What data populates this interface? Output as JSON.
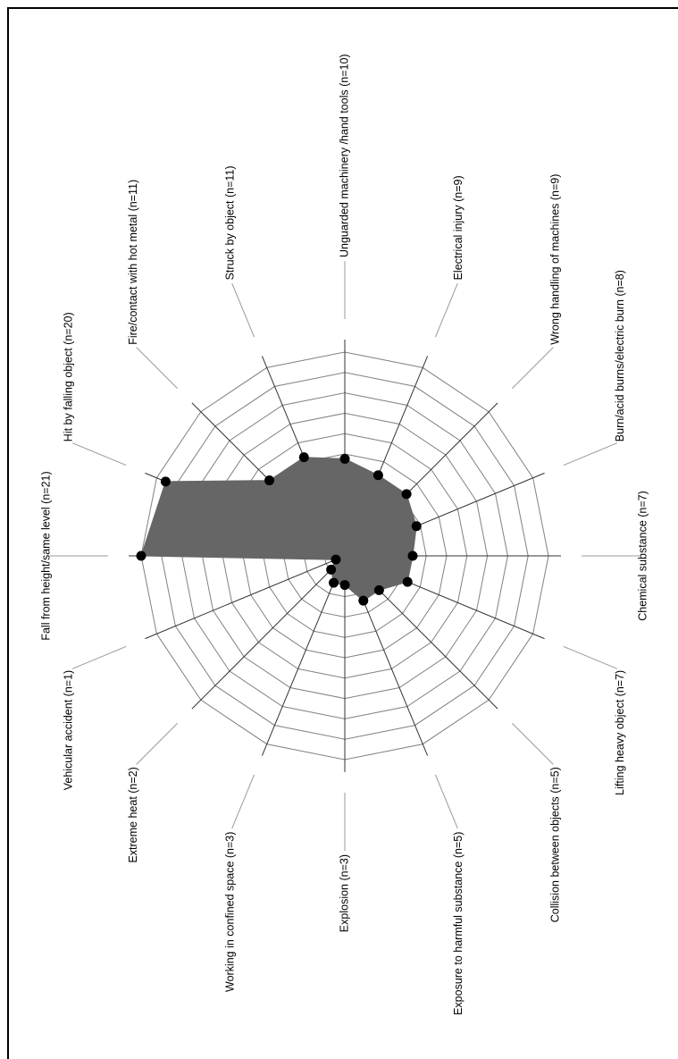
{
  "chart_data": {
    "type": "radar",
    "rotated": "90deg-clockwise",
    "title": "",
    "radial_range": [
      0,
      21
    ],
    "ring_count": 10,
    "fill_color": "#666666",
    "marker_color": "#000000",
    "grid_color": "#808080",
    "categories": [
      {
        "label": "Fall from height/same level (n=21)",
        "value": 21
      },
      {
        "label": "Hit by falling object (n=20)",
        "value": 20
      },
      {
        "label": "Fire/contact with hot metal (n=11)",
        "value": 11
      },
      {
        "label": "Struck by object (n=11)",
        "value": 11
      },
      {
        "label": "Unguarded machinery /hand tools (n=10)",
        "value": 10
      },
      {
        "label": "Electrical injury (n=9)",
        "value": 9
      },
      {
        "label": "Wrong handling of machines (n=9)",
        "value": 9
      },
      {
        "label": "Burn/acid burns/electric burn (n=8)",
        "value": 8
      },
      {
        "label": "Chemical substance (n=7)",
        "value": 7
      },
      {
        "label": "Lifting heavy object (n=7)",
        "value": 7
      },
      {
        "label": "Collision between objects (n=5)",
        "value": 5
      },
      {
        "label": "Exposure to harmful substance (n=5)",
        "value": 5
      },
      {
        "label": "Explosion (n=3)",
        "value": 3
      },
      {
        "label": "Working in confined space (n=3)",
        "value": 3
      },
      {
        "label": "Extreme heat (n=2)",
        "value": 2
      },
      {
        "label": "Vehicular accident (n=1)",
        "value": 1
      }
    ]
  }
}
